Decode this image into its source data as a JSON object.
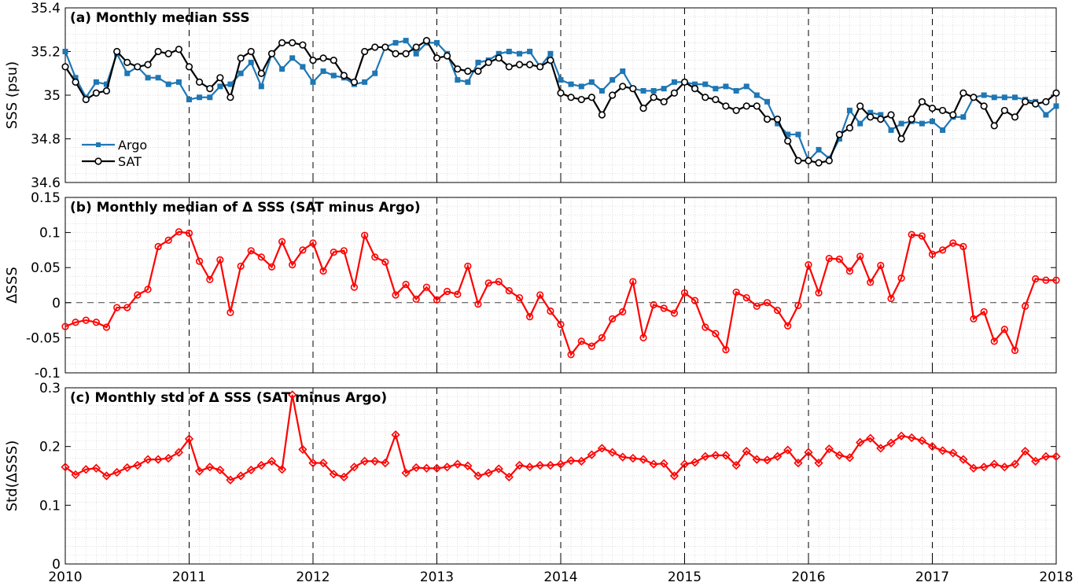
{
  "chart_data": [
    {
      "id": "panel-a",
      "type": "line",
      "title": "(a) Monthly median SSS",
      "ylabel": "SSS (psu)",
      "ylim": [
        34.6,
        35.4
      ],
      "yticks": [
        34.6,
        34.8,
        35,
        35.2,
        35.4
      ],
      "ytick_labels": [
        "34.6",
        "34.8",
        "35",
        "35.2",
        "35.4"
      ],
      "xlim": [
        2010,
        2018
      ],
      "xticks": [
        2010,
        2011,
        2012,
        2013,
        2014,
        2015,
        2016,
        2017,
        2018
      ],
      "grid": "minor dotted, yearly dashed lines",
      "legend_position": "lower-left",
      "series": [
        {
          "name": "Argo",
          "color": "#1f77b4",
          "marker": "square",
          "x": [
            2010.0,
            2010.083,
            2010.167,
            2010.25,
            2010.333,
            2010.417,
            2010.5,
            2010.583,
            2010.667,
            2010.75,
            2010.833,
            2010.917,
            2011.0,
            2011.083,
            2011.167,
            2011.25,
            2011.333,
            2011.417,
            2011.5,
            2011.583,
            2011.667,
            2011.75,
            2011.833,
            2011.917,
            2012.0,
            2012.083,
            2012.167,
            2012.25,
            2012.333,
            2012.417,
            2012.5,
            2012.583,
            2012.667,
            2012.75,
            2012.833,
            2012.917,
            2013.0,
            2013.083,
            2013.167,
            2013.25,
            2013.333,
            2013.417,
            2013.5,
            2013.583,
            2013.667,
            2013.75,
            2013.833,
            2013.917,
            2014.0,
            2014.083,
            2014.167,
            2014.25,
            2014.333,
            2014.417,
            2014.5,
            2014.583,
            2014.667,
            2014.75,
            2014.833,
            2014.917,
            2015.0,
            2015.083,
            2015.167,
            2015.25,
            2015.333,
            2015.417,
            2015.5,
            2015.583,
            2015.667,
            2015.75,
            2015.833,
            2015.917,
            2016.0,
            2016.083,
            2016.167,
            2016.25,
            2016.333,
            2016.417,
            2016.5,
            2016.583,
            2016.667,
            2016.75,
            2016.833,
            2016.917,
            2017.0,
            2017.083,
            2017.167,
            2017.25,
            2017.333,
            2017.417,
            2017.5,
            2017.583,
            2017.667,
            2017.75,
            2017.833,
            2017.917,
            2018.0
          ],
          "values": [
            35.2,
            35.08,
            34.99,
            35.06,
            35.05,
            35.19,
            35.1,
            35.13,
            35.08,
            35.08,
            35.05,
            35.06,
            34.98,
            34.99,
            34.99,
            35.04,
            35.05,
            35.1,
            35.15,
            35.04,
            35.19,
            35.12,
            35.17,
            35.13,
            35.06,
            35.11,
            35.09,
            35.08,
            35.05,
            35.06,
            35.1,
            35.22,
            35.24,
            35.25,
            35.19,
            35.24,
            35.24,
            35.19,
            35.07,
            35.06,
            35.15,
            35.16,
            35.19,
            35.2,
            35.19,
            35.2,
            35.13,
            35.19,
            35.07,
            35.05,
            35.04,
            35.06,
            35.02,
            35.07,
            35.11,
            35.03,
            35.02,
            35.02,
            35.03,
            35.06,
            35.06,
            35.05,
            35.05,
            35.03,
            35.04,
            35.02,
            35.04,
            35.0,
            34.97,
            34.87,
            34.82,
            34.82,
            34.7,
            34.75,
            34.71,
            34.8,
            34.93,
            34.87,
            34.92,
            34.91,
            34.84,
            34.87,
            34.88,
            34.87,
            34.88,
            34.84,
            34.9,
            34.9,
            34.99,
            35.0,
            34.99,
            34.99,
            34.99,
            34.98,
            34.97,
            34.91,
            34.95
          ]
        },
        {
          "name": "SAT",
          "color": "#000000",
          "marker": "circle",
          "x": [
            2010.0,
            2010.083,
            2010.167,
            2010.25,
            2010.333,
            2010.417,
            2010.5,
            2010.583,
            2010.667,
            2010.75,
            2010.833,
            2010.917,
            2011.0,
            2011.083,
            2011.167,
            2011.25,
            2011.333,
            2011.417,
            2011.5,
            2011.583,
            2011.667,
            2011.75,
            2011.833,
            2011.917,
            2012.0,
            2012.083,
            2012.167,
            2012.25,
            2012.333,
            2012.417,
            2012.5,
            2012.583,
            2012.667,
            2012.75,
            2012.833,
            2012.917,
            2013.0,
            2013.083,
            2013.167,
            2013.25,
            2013.333,
            2013.417,
            2013.5,
            2013.583,
            2013.667,
            2013.75,
            2013.833,
            2013.917,
            2014.0,
            2014.083,
            2014.167,
            2014.25,
            2014.333,
            2014.417,
            2014.5,
            2014.583,
            2014.667,
            2014.75,
            2014.833,
            2014.917,
            2015.0,
            2015.083,
            2015.167,
            2015.25,
            2015.333,
            2015.417,
            2015.5,
            2015.583,
            2015.667,
            2015.75,
            2015.833,
            2015.917,
            2016.0,
            2016.083,
            2016.167,
            2016.25,
            2016.333,
            2016.417,
            2016.5,
            2016.583,
            2016.667,
            2016.75,
            2016.833,
            2016.917,
            2017.0,
            2017.083,
            2017.167,
            2017.25,
            2017.333,
            2017.417,
            2017.5,
            2017.583,
            2017.667,
            2017.75,
            2017.833,
            2017.917,
            2018.0
          ],
          "values": [
            35.13,
            35.06,
            34.98,
            35.01,
            35.02,
            35.2,
            35.15,
            35.13,
            35.14,
            35.2,
            35.19,
            35.21,
            35.13,
            35.06,
            35.03,
            35.08,
            34.99,
            35.17,
            35.2,
            35.1,
            35.19,
            35.24,
            35.24,
            35.23,
            35.16,
            35.17,
            35.16,
            35.09,
            35.06,
            35.2,
            35.22,
            35.22,
            35.19,
            35.19,
            35.22,
            35.25,
            35.17,
            35.18,
            35.12,
            35.11,
            35.11,
            35.15,
            35.17,
            35.13,
            35.14,
            35.14,
            35.13,
            35.16,
            35.01,
            34.99,
            34.98,
            34.99,
            34.91,
            35.0,
            35.04,
            35.03,
            34.94,
            34.99,
            34.97,
            35.01,
            35.06,
            35.03,
            34.99,
            34.98,
            34.95,
            34.93,
            34.95,
            34.95,
            34.89,
            34.89,
            34.79,
            34.7,
            34.7,
            34.69,
            34.7,
            34.82,
            34.85,
            34.95,
            34.9,
            34.89,
            34.91,
            34.8,
            34.89,
            34.97,
            34.94,
            34.93,
            34.91,
            35.01,
            34.99,
            34.95,
            34.86,
            34.93,
            34.9,
            34.97,
            34.96,
            34.97,
            35.01
          ]
        }
      ]
    },
    {
      "id": "panel-b",
      "type": "line",
      "title": "(b) Monthly median of Δ SSS (SAT minus Argo)",
      "ylabel": "ΔSSS",
      "ylim": [
        -0.1,
        0.15
      ],
      "yticks": [
        -0.1,
        -0.05,
        0,
        0.05,
        0.1,
        0.15
      ],
      "ytick_labels": [
        "-0.1",
        "-0.05",
        "0",
        "0.05",
        "0.1",
        "0.15"
      ],
      "xlim": [
        2010,
        2018
      ],
      "xticks": [
        2010,
        2011,
        2012,
        2013,
        2014,
        2015,
        2016,
        2017,
        2018
      ],
      "grid": "minor dotted, yearly dashed lines, dashed zero line",
      "series": [
        {
          "name": "",
          "color": "#ff0000",
          "marker": "circle",
          "x": [
            2010.0,
            2010.083,
            2010.167,
            2010.25,
            2010.333,
            2010.417,
            2010.5,
            2010.583,
            2010.667,
            2010.75,
            2010.833,
            2010.917,
            2011.0,
            2011.083,
            2011.167,
            2011.25,
            2011.333,
            2011.417,
            2011.5,
            2011.583,
            2011.667,
            2011.75,
            2011.833,
            2011.917,
            2012.0,
            2012.083,
            2012.167,
            2012.25,
            2012.333,
            2012.417,
            2012.5,
            2012.583,
            2012.667,
            2012.75,
            2012.833,
            2012.917,
            2013.0,
            2013.083,
            2013.167,
            2013.25,
            2013.333,
            2013.417,
            2013.5,
            2013.583,
            2013.667,
            2013.75,
            2013.833,
            2013.917,
            2014.0,
            2014.083,
            2014.167,
            2014.25,
            2014.333,
            2014.417,
            2014.5,
            2014.583,
            2014.667,
            2014.75,
            2014.833,
            2014.917,
            2015.0,
            2015.083,
            2015.167,
            2015.25,
            2015.333,
            2015.417,
            2015.5,
            2015.583,
            2015.667,
            2015.75,
            2015.833,
            2015.917,
            2016.0,
            2016.083,
            2016.167,
            2016.25,
            2016.333,
            2016.417,
            2016.5,
            2016.583,
            2016.667,
            2016.75,
            2016.833,
            2016.917,
            2017.0,
            2017.083,
            2017.167,
            2017.25,
            2017.333,
            2017.417,
            2017.5,
            2017.583,
            2017.667,
            2017.75,
            2017.833,
            2017.917,
            2018.0
          ],
          "values": [
            -0.034,
            -0.028,
            -0.025,
            -0.028,
            -0.035,
            -0.007,
            -0.007,
            0.011,
            0.019,
            0.08,
            0.089,
            0.101,
            0.099,
            0.059,
            0.033,
            0.061,
            -0.014,
            0.052,
            0.074,
            0.065,
            0.051,
            0.087,
            0.054,
            0.075,
            0.085,
            0.045,
            0.072,
            0.074,
            0.022,
            0.096,
            0.065,
            0.058,
            0.011,
            0.026,
            0.005,
            0.022,
            0.004,
            0.016,
            0.012,
            0.052,
            -0.002,
            0.028,
            0.03,
            0.017,
            0.007,
            -0.02,
            0.011,
            -0.012,
            -0.031,
            -0.074,
            -0.055,
            -0.062,
            -0.05,
            -0.023,
            -0.013,
            0.03,
            -0.05,
            -0.003,
            -0.008,
            -0.015,
            0.014,
            0.003,
            -0.035,
            -0.044,
            -0.067,
            0.015,
            0.007,
            -0.005,
            0.0,
            -0.011,
            -0.033,
            -0.004,
            0.054,
            0.014,
            0.063,
            0.062,
            0.045,
            0.066,
            0.029,
            0.053,
            0.006,
            0.035,
            0.097,
            0.095,
            0.069,
            0.075,
            0.085,
            0.08,
            -0.023,
            -0.013,
            -0.055,
            -0.038,
            -0.068,
            -0.005,
            0.034,
            0.032,
            0.032
          ]
        }
      ]
    },
    {
      "id": "panel-c",
      "type": "line",
      "title": "(c) Monthly std of Δ SSS (SAT minus Argo)",
      "ylabel": "Std(ΔSSS)",
      "ylim": [
        0,
        0.3
      ],
      "yticks": [
        0,
        0.1,
        0.2,
        0.3
      ],
      "ytick_labels": [
        "0",
        "0.1",
        "0.2",
        "0.3"
      ],
      "xlim": [
        2010,
        2018
      ],
      "xticks": [
        2010,
        2011,
        2012,
        2013,
        2014,
        2015,
        2016,
        2017,
        2018
      ],
      "xtick_labels": [
        "2010",
        "2011",
        "2012",
        "2013",
        "2014",
        "2015",
        "2016",
        "2017",
        "2018"
      ],
      "grid": "minor dotted, yearly dashed lines",
      "series": [
        {
          "name": "",
          "color": "#ff0000",
          "marker": "diamond",
          "x": [
            2010.0,
            2010.083,
            2010.167,
            2010.25,
            2010.333,
            2010.417,
            2010.5,
            2010.583,
            2010.667,
            2010.75,
            2010.833,
            2010.917,
            2011.0,
            2011.083,
            2011.167,
            2011.25,
            2011.333,
            2011.417,
            2011.5,
            2011.583,
            2011.667,
            2011.75,
            2011.833,
            2011.917,
            2012.0,
            2012.083,
            2012.167,
            2012.25,
            2012.333,
            2012.417,
            2012.5,
            2012.583,
            2012.667,
            2012.75,
            2012.833,
            2012.917,
            2013.0,
            2013.083,
            2013.167,
            2013.25,
            2013.333,
            2013.417,
            2013.5,
            2013.583,
            2013.667,
            2013.75,
            2013.833,
            2013.917,
            2014.0,
            2014.083,
            2014.167,
            2014.25,
            2014.333,
            2014.417,
            2014.5,
            2014.583,
            2014.667,
            2014.75,
            2014.833,
            2014.917,
            2015.0,
            2015.083,
            2015.167,
            2015.25,
            2015.333,
            2015.417,
            2015.5,
            2015.583,
            2015.667,
            2015.75,
            2015.833,
            2015.917,
            2016.0,
            2016.083,
            2016.167,
            2016.25,
            2016.333,
            2016.417,
            2016.5,
            2016.583,
            2016.667,
            2016.75,
            2016.833,
            2016.917,
            2017.0,
            2017.083,
            2017.167,
            2017.25,
            2017.333,
            2017.417,
            2017.5,
            2017.583,
            2017.667,
            2017.75,
            2017.833,
            2017.917,
            2018.0
          ],
          "values": [
            0.165,
            0.152,
            0.161,
            0.163,
            0.15,
            0.156,
            0.164,
            0.168,
            0.178,
            0.178,
            0.18,
            0.19,
            0.213,
            0.158,
            0.165,
            0.16,
            0.143,
            0.15,
            0.16,
            0.168,
            0.175,
            0.161,
            0.288,
            0.195,
            0.172,
            0.172,
            0.153,
            0.148,
            0.165,
            0.175,
            0.175,
            0.172,
            0.22,
            0.155,
            0.164,
            0.163,
            0.163,
            0.165,
            0.17,
            0.167,
            0.15,
            0.155,
            0.162,
            0.148,
            0.168,
            0.165,
            0.168,
            0.168,
            0.17,
            0.176,
            0.175,
            0.186,
            0.197,
            0.19,
            0.182,
            0.18,
            0.178,
            0.17,
            0.171,
            0.15,
            0.17,
            0.173,
            0.183,
            0.185,
            0.185,
            0.168,
            0.192,
            0.178,
            0.177,
            0.183,
            0.194,
            0.172,
            0.19,
            0.172,
            0.196,
            0.185,
            0.181,
            0.207,
            0.214,
            0.197,
            0.206,
            0.218,
            0.215,
            0.21,
            0.2,
            0.193,
            0.189,
            0.178,
            0.163,
            0.165,
            0.17,
            0.165,
            0.17,
            0.192,
            0.175,
            0.183,
            0.183
          ]
        }
      ]
    }
  ]
}
